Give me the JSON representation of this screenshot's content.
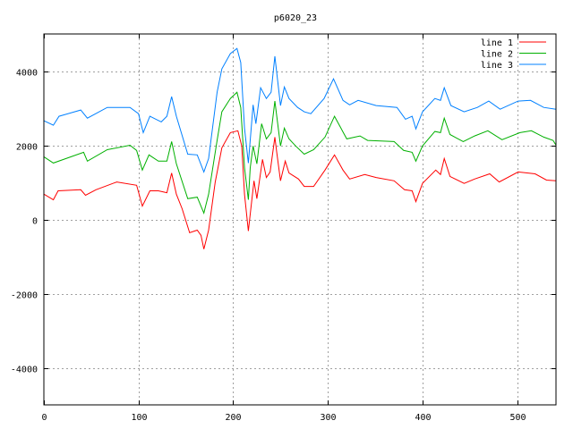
{
  "chart_data": {
    "type": "line",
    "title": "p6020_23",
    "xlabel": "",
    "ylabel": "",
    "xlim": [
      0,
      541
    ],
    "ylim": [
      -5000,
      5000
    ],
    "xticks": [
      0,
      100,
      200,
      300,
      400,
      500
    ],
    "yticks": [
      -4000,
      -2000,
      0,
      2000,
      4000
    ],
    "grid": true,
    "legend": "top-right",
    "series": [
      {
        "name": "line 1",
        "color": "#ff0000",
        "x": [
          0,
          10,
          15,
          39,
          44,
          55,
          77,
          98,
          104,
          112,
          121,
          130,
          135,
          140,
          146,
          154,
          162,
          166,
          169,
          174,
          181,
          188,
          197,
          205,
          209,
          212,
          216,
          219,
          222,
          225,
          231,
          235,
          239,
          244,
          246,
          250,
          255,
          259,
          269,
          275,
          285,
          297,
          307,
          316,
          323,
          339,
          351,
          370,
          381,
          389,
          393,
          400,
          414,
          419,
          423,
          429,
          444,
          455,
          471,
          481,
          501,
          519,
          531,
          541
        ],
        "y": [
          683,
          530,
          770,
          800,
          650,
          800,
          1010,
          920,
          360,
          770,
          770,
          720,
          1250,
          680,
          290,
          -360,
          -290,
          -430,
          -800,
          -290,
          1010,
          1930,
          2340,
          2390,
          1980,
          680,
          -310,
          360,
          1040,
          560,
          1620,
          1130,
          1280,
          2220,
          1810,
          1040,
          1570,
          1250,
          1090,
          890,
          890,
          1330,
          1740,
          1330,
          1090,
          1210,
          1130,
          1040,
          800,
          770,
          480,
          970,
          1330,
          1210,
          1640,
          1160,
          970,
          1090,
          1230,
          1010,
          1280,
          1230,
          1060,
          1040
        ]
      },
      {
        "name": "line 2",
        "color": "#00b000",
        "x": [
          0,
          10,
          42,
          46,
          67,
          91,
          98,
          104,
          111,
          121,
          130,
          135,
          140,
          152,
          162,
          169,
          174,
          183,
          188,
          197,
          204,
          208,
          212,
          216,
          218,
          221,
          225,
          230,
          235,
          240,
          244,
          250,
          254,
          259,
          266,
          275,
          285,
          297,
          307,
          320,
          334,
          342,
          370,
          380,
          389,
          393,
          400,
          413,
          419,
          423,
          429,
          443,
          455,
          469,
          484,
          503,
          515,
          528,
          538,
          541
        ],
        "y": [
          1690,
          1520,
          1810,
          1570,
          1880,
          2000,
          1860,
          1330,
          1740,
          1570,
          1570,
          2100,
          1500,
          560,
          600,
          170,
          680,
          2130,
          2900,
          3260,
          3430,
          3020,
          1400,
          530,
          1400,
          1980,
          1500,
          2580,
          2170,
          2340,
          3190,
          1980,
          2460,
          2170,
          1980,
          1760,
          1880,
          2220,
          2780,
          2170,
          2250,
          2130,
          2100,
          1860,
          1810,
          1570,
          1980,
          2370,
          2340,
          2730,
          2290,
          2100,
          2250,
          2390,
          2150,
          2340,
          2390,
          2220,
          2130,
          2000
        ]
      },
      {
        "name": "line 3",
        "color": "#0080ff",
        "x": [
          0,
          10,
          16,
          39,
          46,
          67,
          91,
          100,
          105,
          112,
          124,
          130,
          135,
          140,
          152,
          162,
          169,
          174,
          183,
          188,
          197,
          204,
          208,
          212,
          216,
          221,
          224,
          229,
          235,
          240,
          244,
          250,
          254,
          259,
          268,
          275,
          282,
          296,
          306,
          316,
          323,
          332,
          351,
          373,
          382,
          389,
          393,
          400,
          413,
          419,
          423,
          430,
          444,
          458,
          470,
          482,
          501,
          514,
          528,
          541
        ],
        "y": [
          2660,
          2540,
          2780,
          2950,
          2730,
          3020,
          3020,
          2850,
          2340,
          2780,
          2630,
          2780,
          3310,
          2780,
          1760,
          1740,
          1280,
          1640,
          3430,
          4060,
          4470,
          4610,
          4230,
          2460,
          1520,
          3090,
          2580,
          3550,
          3260,
          3430,
          4400,
          3070,
          3570,
          3260,
          3020,
          2900,
          2850,
          3260,
          3790,
          3210,
          3090,
          3210,
          3070,
          3020,
          2700,
          2780,
          2440,
          2900,
          3260,
          3210,
          3550,
          3070,
          2900,
          3020,
          3190,
          2970,
          3190,
          3210,
          3020,
          2970
        ]
      }
    ]
  }
}
